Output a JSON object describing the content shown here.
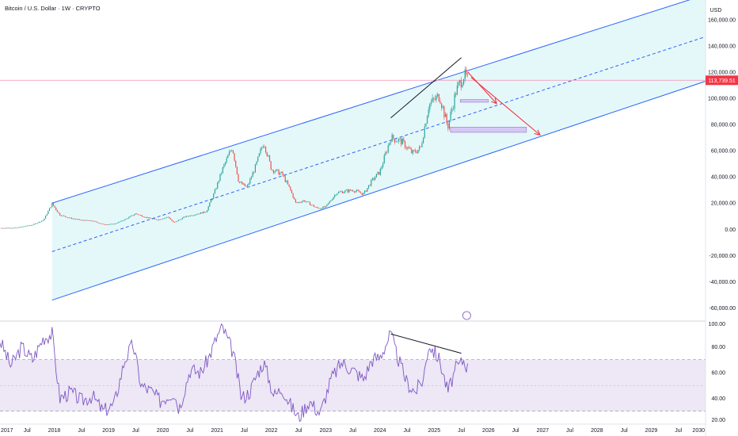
{
  "header": {
    "symbol_title": "Bitcoin / U.S. Dollar · 1W · CRYPTO"
  },
  "price_axis": {
    "currency": "USD",
    "current_price_label": "113,739.51"
  },
  "colors": {
    "up": "#26a69a",
    "down": "#ef5350",
    "channel_line": "#2962ff",
    "channel_fill": "#e0f7f8",
    "price_line": "#f48fb1",
    "price_badge": "#f23645",
    "forecast_arrow": "#f23645",
    "zone_fill": "#d6c8f5",
    "rsi_line": "#7e57c2",
    "rsi_band": "#ede7f6",
    "trendline": "#131722"
  },
  "chart_data": [
    {
      "type": "line",
      "role": "price",
      "title": "Bitcoin / U.S. Dollar · 1W · CRYPTO",
      "scale": "linear",
      "ylim": [
        -70000,
        175000
      ],
      "y_ticks": [
        160000,
        140000,
        120000,
        100000,
        80000,
        60000,
        40000,
        20000,
        0,
        -20000,
        -40000,
        -60000
      ],
      "y_tick_labels": [
        "160,000.00",
        "140,000.00",
        "120,000.00",
        "100,000.00",
        "80,000.00",
        "60,000.00",
        "40,000.00",
        "20,000.00",
        "0.00",
        "-20,000.00",
        "-40,000.00",
        "-60,000.00"
      ],
      "xlim": [
        2017.0,
        2030.0
      ],
      "x_ticks": [
        2017.0,
        2017.5,
        2018.0,
        2018.5,
        2019.0,
        2019.5,
        2020.0,
        2020.5,
        2021.0,
        2021.5,
        2022.0,
        2022.5,
        2023.0,
        2023.5,
        2024.0,
        2024.5,
        2025.0,
        2025.5,
        2026.0,
        2026.5,
        2027.0,
        2027.5,
        2028.0,
        2028.5,
        2029.0,
        2029.5,
        2030.0
      ],
      "x_tick_labels": [
        "2017",
        "Jul",
        "2018",
        "Jul",
        "2019",
        "Jul",
        "2020",
        "Jul",
        "2021",
        "Jul",
        "2022",
        "Jul",
        "2023",
        "Jul",
        "2024",
        "Jul",
        "2025",
        "Jul",
        "2026",
        "Jul",
        "2027",
        "Jul",
        "2028",
        "Jul",
        "2029",
        "Jul",
        "2030"
      ],
      "price_path": [
        [
          2017.0,
          1000
        ],
        [
          2017.3,
          1200
        ],
        [
          2017.6,
          3500
        ],
        [
          2017.8,
          7000
        ],
        [
          2017.96,
          19500
        ],
        [
          2018.1,
          11000
        ],
        [
          2018.3,
          8500
        ],
        [
          2018.5,
          7000
        ],
        [
          2018.7,
          6500
        ],
        [
          2018.9,
          3800
        ],
        [
          2019.1,
          4000
        ],
        [
          2019.3,
          7500
        ],
        [
          2019.5,
          12000
        ],
        [
          2019.7,
          9000
        ],
        [
          2019.9,
          7200
        ],
        [
          2020.1,
          9500
        ],
        [
          2020.2,
          5000
        ],
        [
          2020.4,
          9500
        ],
        [
          2020.6,
          11500
        ],
        [
          2020.8,
          13500
        ],
        [
          2020.95,
          28000
        ],
        [
          2021.1,
          46000
        ],
        [
          2021.28,
          63000
        ],
        [
          2021.4,
          36000
        ],
        [
          2021.55,
          32000
        ],
        [
          2021.7,
          47000
        ],
        [
          2021.86,
          67000
        ],
        [
          2022.0,
          46000
        ],
        [
          2022.2,
          42000
        ],
        [
          2022.35,
          30000
        ],
        [
          2022.45,
          20000
        ],
        [
          2022.6,
          22000
        ],
        [
          2022.85,
          16000
        ],
        [
          2023.0,
          17000
        ],
        [
          2023.2,
          28000
        ],
        [
          2023.5,
          30000
        ],
        [
          2023.7,
          27000
        ],
        [
          2023.85,
          37000
        ],
        [
          2024.0,
          44000
        ],
        [
          2024.2,
          70000
        ],
        [
          2024.4,
          67000
        ],
        [
          2024.6,
          58000
        ],
        [
          2024.75,
          62000
        ],
        [
          2024.9,
          95000
        ],
        [
          2025.1,
          102000
        ],
        [
          2025.25,
          78000
        ],
        [
          2025.4,
          105000
        ],
        [
          2025.55,
          118000
        ],
        [
          2025.62,
          113739
        ]
      ],
      "channel": {
        "upper": [
          [
            2017.96,
            20000
          ],
          [
            2030.0,
            179000
          ]
        ],
        "middle": [
          [
            2017.96,
            -17000
          ],
          [
            2030.0,
            147000
          ]
        ],
        "lower": [
          [
            2017.96,
            -54000
          ],
          [
            2030.0,
            113000
          ]
        ]
      },
      "current_price": 113739.51,
      "trendline_price": [
        [
          2024.2,
          85000
        ],
        [
          2025.5,
          131000
        ]
      ],
      "forecast_arrows": [
        [
          [
            2025.62,
            120000
          ],
          [
            2026.15,
            96000
          ]
        ],
        [
          [
            2025.68,
            116000
          ],
          [
            2026.95,
            72000
          ]
        ]
      ],
      "target_zones": [
        {
          "x": [
            2025.48,
            2026.0
          ],
          "y": [
            97000,
            99000
          ]
        },
        {
          "x": [
            2025.3,
            2026.7
          ],
          "y": [
            74000,
            78000
          ]
        }
      ]
    },
    {
      "type": "line",
      "role": "rsi",
      "ylim": [
        20,
        100
      ],
      "y_ticks": [
        100,
        80,
        60,
        40,
        20
      ],
      "y_tick_labels": [
        "100.00",
        "80.00",
        "60.00",
        "40.00",
        "20.00"
      ],
      "band": [
        30,
        70
      ],
      "midline": 50,
      "rsi_path": [
        [
          2017.0,
          85
        ],
        [
          2017.2,
          65
        ],
        [
          2017.4,
          80
        ],
        [
          2017.6,
          70
        ],
        [
          2017.8,
          87
        ],
        [
          2017.96,
          90
        ],
        [
          2018.1,
          40
        ],
        [
          2018.3,
          45
        ],
        [
          2018.5,
          38
        ],
        [
          2018.7,
          42
        ],
        [
          2018.9,
          30
        ],
        [
          2019.1,
          35
        ],
        [
          2019.3,
          70
        ],
        [
          2019.45,
          82
        ],
        [
          2019.6,
          50
        ],
        [
          2019.8,
          45
        ],
        [
          2019.95,
          38
        ],
        [
          2020.2,
          45
        ],
        [
          2020.3,
          32
        ],
        [
          2020.5,
          62
        ],
        [
          2020.7,
          60
        ],
        [
          2020.85,
          72
        ],
        [
          2021.0,
          88
        ],
        [
          2021.1,
          95
        ],
        [
          2021.3,
          75
        ],
        [
          2021.45,
          40
        ],
        [
          2021.6,
          45
        ],
        [
          2021.75,
          60
        ],
        [
          2021.86,
          68
        ],
        [
          2022.05,
          42
        ],
        [
          2022.2,
          48
        ],
        [
          2022.35,
          35
        ],
        [
          2022.5,
          25
        ],
        [
          2022.7,
          38
        ],
        [
          2022.9,
          28
        ],
        [
          2023.1,
          55
        ],
        [
          2023.3,
          68
        ],
        [
          2023.5,
          62
        ],
        [
          2023.7,
          55
        ],
        [
          2023.85,
          70
        ],
        [
          2024.0,
          72
        ],
        [
          2024.2,
          90
        ],
        [
          2024.3,
          75
        ],
        [
          2024.5,
          52
        ],
        [
          2024.65,
          45
        ],
        [
          2024.8,
          55
        ],
        [
          2024.9,
          82
        ],
        [
          2025.1,
          70
        ],
        [
          2025.25,
          45
        ],
        [
          2025.4,
          63
        ],
        [
          2025.55,
          70
        ],
        [
          2025.62,
          63
        ]
      ],
      "trendline_rsi": [
        [
          2024.2,
          90
        ],
        [
          2025.5,
          75
        ]
      ]
    }
  ]
}
